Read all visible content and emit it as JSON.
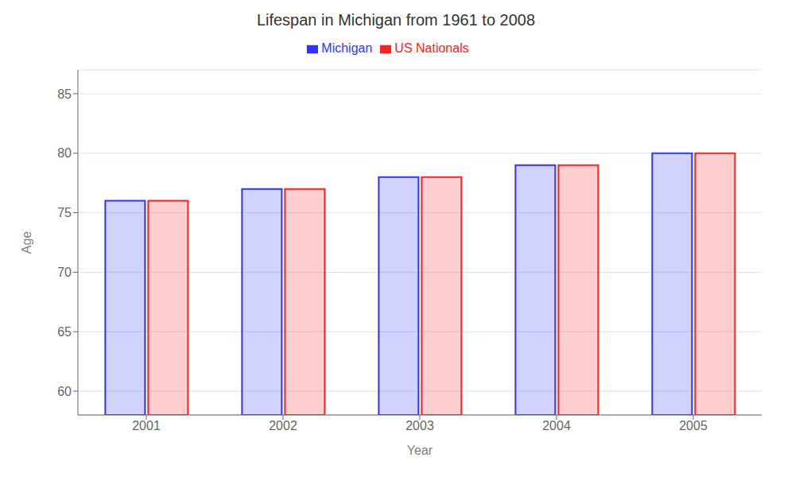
{
  "chart_data": {
    "type": "bar",
    "title": "Lifespan in Michigan from 1961 to 2008",
    "x_label": "Year",
    "y_label": "Age",
    "categories": [
      "2001",
      "2002",
      "2003",
      "2004",
      "2005"
    ],
    "series": [
      {
        "name": "Michigan",
        "color": "#3333ff",
        "values": [
          76,
          77,
          78,
          79,
          80
        ]
      },
      {
        "name": "US Nationals",
        "color": "#ff2222",
        "values": [
          76,
          77,
          78,
          79,
          80
        ]
      }
    ],
    "ylim": [
      58,
      87
    ],
    "yticks": [
      60,
      65,
      70,
      75,
      80,
      85
    ],
    "grid": true,
    "legend": "top"
  }
}
